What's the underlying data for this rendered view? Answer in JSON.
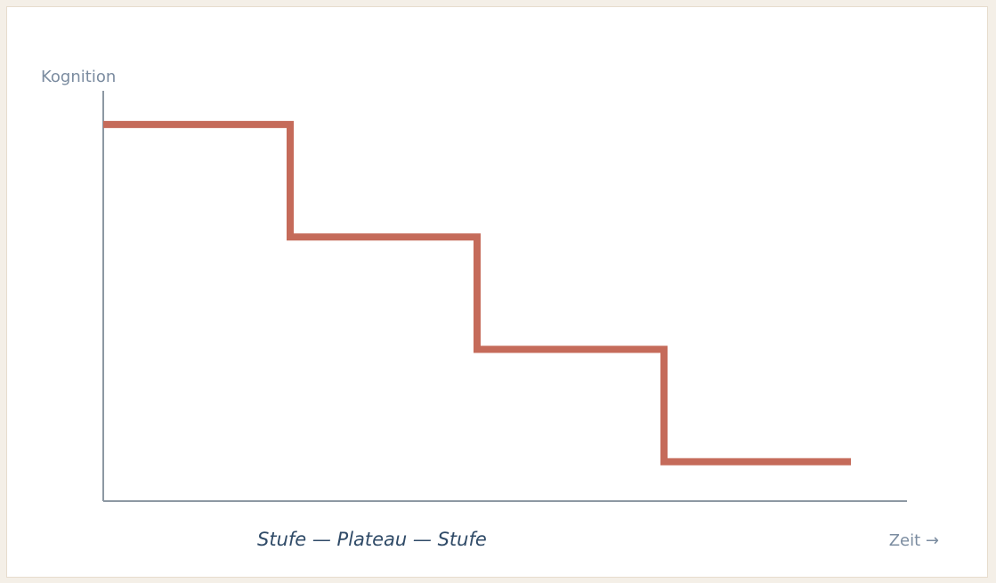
{
  "chart_data": {
    "type": "line",
    "line_style": "step",
    "x": [
      0,
      1,
      2,
      3
    ],
    "y": [
      4,
      3,
      2,
      1
    ],
    "xlim": [
      0,
      4.3
    ],
    "ylim": [
      0.65,
      4.3
    ],
    "ylabel": "Kognition",
    "xlabel": "Zeit →",
    "caption": "Stufe — Plateau — Stufe",
    "grid": false,
    "legend": "none",
    "line_color": "#c56b5a"
  },
  "colors": {
    "background": "#f4efe7",
    "card": "#ffffff",
    "axis": "#8d98a3",
    "axis_label": "#7b8ca0",
    "caption": "#2f4a67"
  }
}
